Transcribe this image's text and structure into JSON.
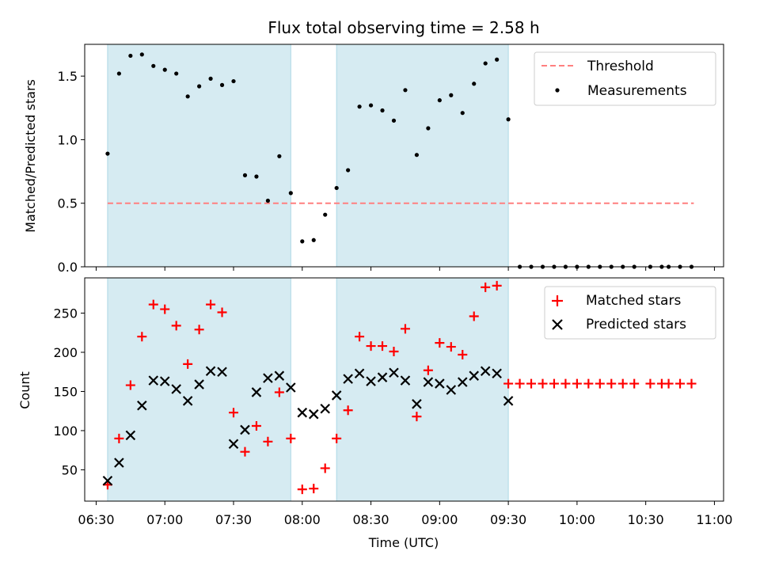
{
  "title": "Flux total observing time = 2.58 h",
  "colors": {
    "shade": "#add8e6",
    "threshold": "#ff7f7f",
    "measurement": "#000000",
    "matched": "#ff0000",
    "predicted": "#000000"
  },
  "chart_data": [
    {
      "type": "scatter",
      "ylabel": "Matched/Predicted stars",
      "xlabel": "",
      "xlim": [
        "06:25",
        "11:04"
      ],
      "ylim": [
        0,
        1.75
      ],
      "yticks": [
        "0.0",
        "0.5",
        "1.0",
        "1.5"
      ],
      "grid": false,
      "legend_position": "top-right",
      "shaded_intervals": [
        [
          "06:35",
          "07:55"
        ],
        [
          "08:15",
          "09:30"
        ]
      ],
      "threshold": {
        "name": "Threshold",
        "y": 0.5,
        "x": [
          "06:35",
          "10:51"
        ]
      },
      "series": [
        {
          "name": "Measurements",
          "x": [
            "06:35",
            "06:40",
            "06:45",
            "06:50",
            "06:55",
            "07:00",
            "07:05",
            "07:10",
            "07:15",
            "07:20",
            "07:25",
            "07:30",
            "07:35",
            "07:40",
            "07:45",
            "07:50",
            "07:55",
            "08:00",
            "08:05",
            "08:10",
            "08:15",
            "08:20",
            "08:25",
            "08:30",
            "08:35",
            "08:40",
            "08:45",
            "08:50",
            "08:55",
            "09:00",
            "09:05",
            "09:10",
            "09:15",
            "09:20",
            "09:25",
            "09:30",
            "09:35",
            "09:40",
            "09:45",
            "09:50",
            "09:55",
            "10:00",
            "10:05",
            "10:10",
            "10:15",
            "10:20",
            "10:25",
            "10:32",
            "10:37",
            "10:40",
            "10:45",
            "10:50"
          ],
          "y": [
            0.89,
            1.52,
            1.66,
            1.67,
            1.58,
            1.55,
            1.52,
            1.34,
            1.42,
            1.48,
            1.43,
            1.46,
            0.72,
            0.71,
            0.52,
            0.87,
            0.58,
            0.2,
            0.21,
            0.41,
            0.62,
            0.76,
            1.26,
            1.27,
            1.23,
            1.15,
            1.39,
            0.88,
            1.09,
            1.31,
            1.35,
            1.21,
            1.44,
            1.6,
            1.63,
            1.16,
            0,
            0,
            0,
            0,
            0,
            0,
            0,
            0,
            0,
            0,
            0,
            0,
            0,
            0,
            0,
            0
          ]
        }
      ]
    },
    {
      "type": "scatter",
      "ylabel": "Count",
      "xlabel": "Time (UTC)",
      "xlim": [
        "06:25",
        "11:04"
      ],
      "ylim": [
        10,
        295
      ],
      "yticks": [
        "50",
        "100",
        "150",
        "200",
        "250"
      ],
      "xticks": [
        "06:30",
        "07:00",
        "07:30",
        "08:00",
        "08:30",
        "09:00",
        "09:30",
        "10:00",
        "10:30",
        "11:00"
      ],
      "grid": false,
      "legend_position": "top-right",
      "shaded_intervals": [
        [
          "06:35",
          "07:55"
        ],
        [
          "08:15",
          "09:30"
        ]
      ],
      "series": [
        {
          "name": "Matched stars",
          "marker": "+",
          "x": [
            "06:35",
            "06:40",
            "06:45",
            "06:50",
            "06:55",
            "07:00",
            "07:05",
            "07:10",
            "07:15",
            "07:20",
            "07:25",
            "07:30",
            "07:35",
            "07:40",
            "07:45",
            "07:50",
            "07:55",
            "08:00",
            "08:05",
            "08:10",
            "08:15",
            "08:20",
            "08:25",
            "08:30",
            "08:35",
            "08:40",
            "08:45",
            "08:50",
            "08:55",
            "09:00",
            "09:05",
            "09:10",
            "09:15",
            "09:20",
            "09:25",
            "09:30",
            "09:35",
            "09:40",
            "09:45",
            "09:50",
            "09:55",
            "10:00",
            "10:05",
            "10:10",
            "10:15",
            "10:20",
            "10:25",
            "10:32",
            "10:37",
            "10:40",
            "10:45",
            "10:50"
          ],
          "y": [
            31,
            90,
            158,
            220,
            261,
            255,
            234,
            185,
            229,
            261,
            251,
            123,
            73,
            106,
            86,
            149,
            90,
            25,
            26,
            52,
            90,
            126,
            220,
            208,
            208,
            201,
            230,
            118,
            177,
            212,
            207,
            197,
            246,
            283,
            285,
            160,
            160,
            160,
            160,
            160,
            160,
            160,
            160,
            160,
            160,
            160,
            160,
            160,
            160,
            160,
            160,
            160
          ]
        },
        {
          "name": "Predicted stars",
          "marker": "x",
          "x": [
            "06:35",
            "06:40",
            "06:45",
            "06:50",
            "06:55",
            "07:00",
            "07:05",
            "07:10",
            "07:15",
            "07:20",
            "07:25",
            "07:30",
            "07:35",
            "07:40",
            "07:45",
            "07:50",
            "07:55",
            "08:00",
            "08:05",
            "08:10",
            "08:15",
            "08:20",
            "08:25",
            "08:30",
            "08:35",
            "08:40",
            "08:45",
            "08:50",
            "08:55",
            "09:00",
            "09:05",
            "09:10",
            "09:15",
            "09:20",
            "09:25",
            "09:30"
          ],
          "y": [
            36,
            59,
            94,
            132,
            164,
            163,
            153,
            138,
            159,
            176,
            175,
            83,
            101,
            149,
            167,
            170,
            155,
            123,
            121,
            128,
            145,
            166,
            173,
            163,
            168,
            174,
            164,
            134,
            162,
            160,
            152,
            162,
            170,
            176,
            173,
            138
          ]
        }
      ]
    }
  ]
}
